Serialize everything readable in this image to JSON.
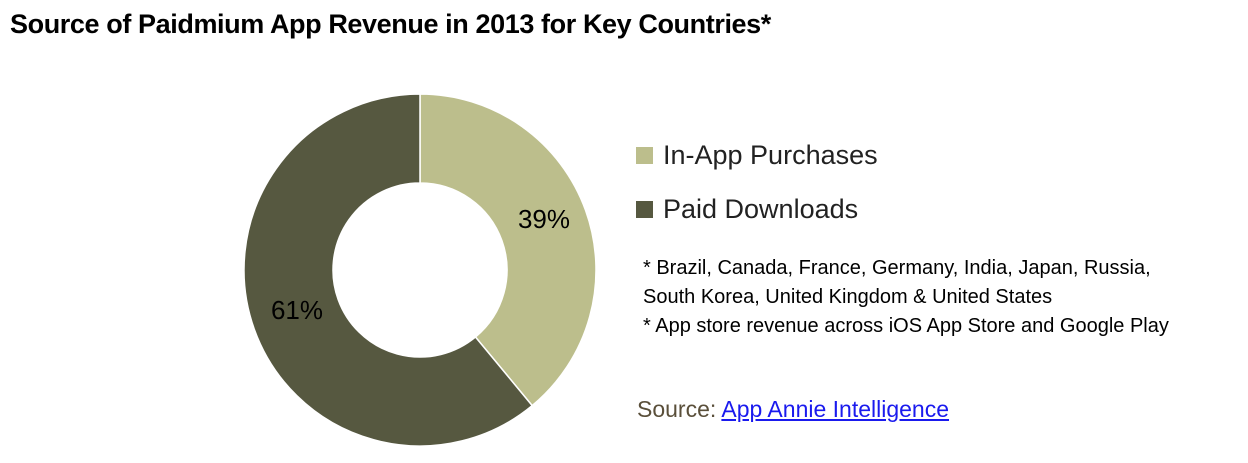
{
  "title": "Source of Paidmium App Revenue in 2013 for Key Countries*",
  "chart_data": {
    "type": "pie",
    "variant": "donut",
    "title": "Source of Paidmium App Revenue in 2013 for Key Countries*",
    "categories": [
      "In-App Purchases",
      "Paid Downloads"
    ],
    "values": [
      39,
      61
    ],
    "labels": [
      "39%",
      "61%"
    ],
    "colors": [
      "#bcbe8c",
      "#565840"
    ],
    "legend_position": "right",
    "start_angle": "12 o'clock, clockwise"
  },
  "legend": {
    "items": [
      {
        "label": "In-App Purchases",
        "color": "#bcbe8c"
      },
      {
        "label": "Paid Downloads",
        "color": "#565840"
      }
    ]
  },
  "notes": [
    "* Brazil, Canada, France, Germany, India, Japan, Russia,",
    "South Korea, United Kingdom & United States",
    "* App store revenue across iOS App Store and Google Play"
  ],
  "source": {
    "prefix": "Source:",
    "link_text": "App Annie Intelligence"
  }
}
